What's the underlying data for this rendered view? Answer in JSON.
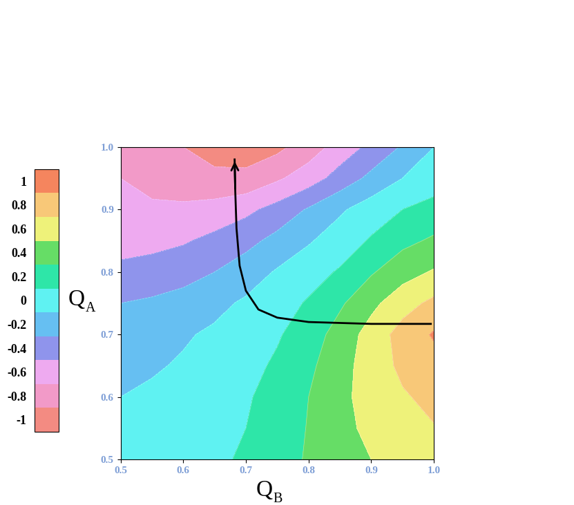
{
  "chart_data": {
    "type": "contour",
    "xlabel": "QB",
    "ylabel": "QA",
    "x": [
      0.5,
      0.55,
      0.6,
      0.65,
      0.7,
      0.75,
      0.8,
      0.85,
      0.9,
      0.95,
      1.0
    ],
    "y": [
      0.5,
      0.55,
      0.6,
      0.65,
      0.7,
      0.75,
      0.8,
      0.85,
      0.9,
      0.95,
      1.0
    ],
    "z": [
      [
        -0.05,
        -0.03,
        0.0,
        0.06,
        0.13,
        0.22,
        0.32,
        0.42,
        0.5,
        0.57,
        0.62
      ],
      [
        -0.08,
        -0.05,
        -0.02,
        0.03,
        0.1,
        0.2,
        0.31,
        0.44,
        0.55,
        0.63,
        0.69
      ],
      [
        -0.1,
        -0.07,
        -0.03,
        0.02,
        0.08,
        0.17,
        0.3,
        0.45,
        0.58,
        0.68,
        0.75
      ],
      [
        -0.15,
        -0.12,
        -0.08,
        -0.03,
        0.04,
        0.13,
        0.26,
        0.42,
        0.6,
        0.74,
        0.83
      ],
      [
        -0.2,
        -0.17,
        -0.12,
        -0.07,
        0.0,
        0.08,
        0.2,
        0.38,
        0.58,
        0.78,
        0.92
      ],
      [
        -0.3,
        -0.27,
        -0.22,
        -0.15,
        -0.07,
        0.02,
        0.12,
        0.27,
        0.45,
        0.62,
        0.75
      ],
      [
        -0.45,
        -0.42,
        -0.38,
        -0.3,
        -0.2,
        -0.08,
        0.02,
        0.12,
        0.28,
        0.42,
        0.52
      ],
      [
        -0.58,
        -0.56,
        -0.52,
        -0.45,
        -0.36,
        -0.24,
        -0.12,
        0.0,
        0.12,
        0.25,
        0.33
      ],
      [
        -0.65,
        -0.67,
        -0.66,
        -0.62,
        -0.55,
        -0.43,
        -0.28,
        -0.13,
        0.0,
        0.1,
        0.17
      ],
      [
        -0.7,
        -0.76,
        -0.82,
        -0.86,
        -0.85,
        -0.73,
        -0.6,
        -0.42,
        -0.25,
        -0.1,
        0.0
      ],
      [
        -0.72,
        -0.8,
        -0.9,
        -0.97,
        -1.0,
        -0.95,
        -0.8,
        -0.62,
        -0.45,
        -0.28,
        -0.1
      ]
    ],
    "xlim": [
      0.5,
      1.0
    ],
    "ylim": [
      0.5,
      1.0
    ],
    "xticks": [
      0.5,
      0.6,
      0.7,
      0.8,
      0.9,
      1.0
    ],
    "yticks": [
      0.5,
      0.6,
      0.7,
      0.8,
      0.9,
      1.0
    ],
    "colorbar": {
      "range": [
        -1.1,
        1.1
      ],
      "levels": [
        -1.1,
        -0.9,
        -0.7,
        -0.5,
        -0.3,
        -0.1,
        0.1,
        0.3,
        0.5,
        0.7,
        0.9,
        1.1
      ],
      "ticks": [
        1,
        0.8,
        0.6,
        0.4,
        0.2,
        0,
        -0.2,
        -0.4,
        -0.6,
        -0.8,
        -1
      ],
      "colors": [
        "#f38b82",
        "#f29ac8",
        "#eeaaf0",
        "#8f94ec",
        "#66bff2",
        "#5ff2f2",
        "#2ee6a8",
        "#66dd66",
        "#eef27a",
        "#f8c878",
        "#f5855e"
      ]
    },
    "path": {
      "x": [
        0.995,
        0.9,
        0.8,
        0.75,
        0.72,
        0.7,
        0.69,
        0.685,
        0.683,
        0.682
      ],
      "y": [
        0.717,
        0.717,
        0.72,
        0.727,
        0.74,
        0.77,
        0.81,
        0.87,
        0.93,
        0.98
      ]
    }
  }
}
